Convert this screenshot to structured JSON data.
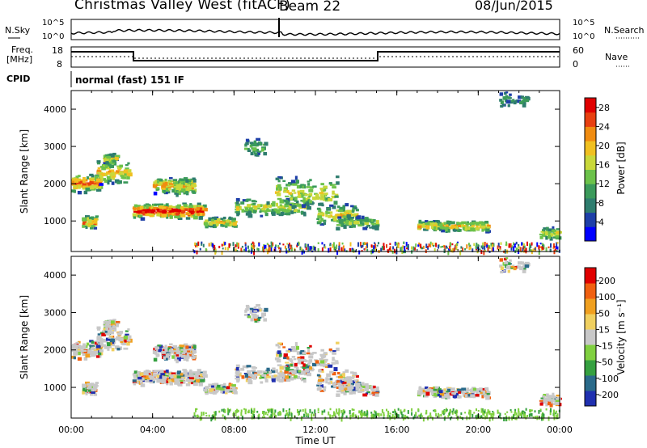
{
  "header": {
    "title": "Christmas Valley West (fitACF)",
    "beam": "Beam 22",
    "date": "08/Jun/2015"
  },
  "strip_panels": {
    "noise_left": "N.Sky",
    "noise_right": "N.Search",
    "noise_ticks": [
      "10^5",
      "10^0"
    ],
    "freq_left": "Freq.",
    "freq_unit": "[MHz]",
    "freq_ticks": [
      "18",
      "8"
    ],
    "nave_right": "Nave",
    "nave_ticks": [
      "60",
      "0"
    ],
    "cpid_label": "CPID",
    "cpid_mode": "normal (fast) 151 IF"
  },
  "chart_data": [
    {
      "type": "heatmap",
      "panel": "power",
      "ylabel": "Slant Range [km]",
      "y_ticks": [
        "4000",
        "3000",
        "2000",
        "1000"
      ],
      "ylim": [
        180,
        4500
      ],
      "xlim_hours": [
        0,
        24
      ],
      "colorbar": {
        "label": "Power [dB]",
        "ticks": [
          "28",
          "24",
          "20",
          "16",
          "12",
          "8",
          "4"
        ],
        "range": [
          0,
          30
        ],
        "colors": [
          "#0000ff",
          "#1e3fa8",
          "#2e7d6e",
          "#3b9a5b",
          "#6cc24a",
          "#c9d83a",
          "#f0c020",
          "#f08c10",
          "#e84010",
          "#e00000"
        ]
      }
    },
    {
      "type": "heatmap",
      "panel": "velocity",
      "ylabel": "Slant Range [km]",
      "y_ticks": [
        "4000",
        "3000",
        "2000",
        "1000"
      ],
      "ylim": [
        180,
        4500
      ],
      "xlim_hours": [
        0,
        24
      ],
      "colorbar": {
        "label": "Velocity [m s⁻¹]",
        "ticks": [
          "200",
          "100",
          "50",
          "15",
          "-15",
          "-50",
          "-100",
          "-200"
        ],
        "colors": [
          "#2030b0",
          "#2a6a8a",
          "#35a040",
          "#80d040",
          "#c8c8c8",
          "#f0d060",
          "#f0a020",
          "#f06010",
          "#e00000"
        ]
      }
    }
  ],
  "x_axis": {
    "label": "Time UT",
    "ticks": [
      "00:00",
      "04:00",
      "08:00",
      "12:00",
      "16:00",
      "20:00",
      "00:00"
    ]
  }
}
